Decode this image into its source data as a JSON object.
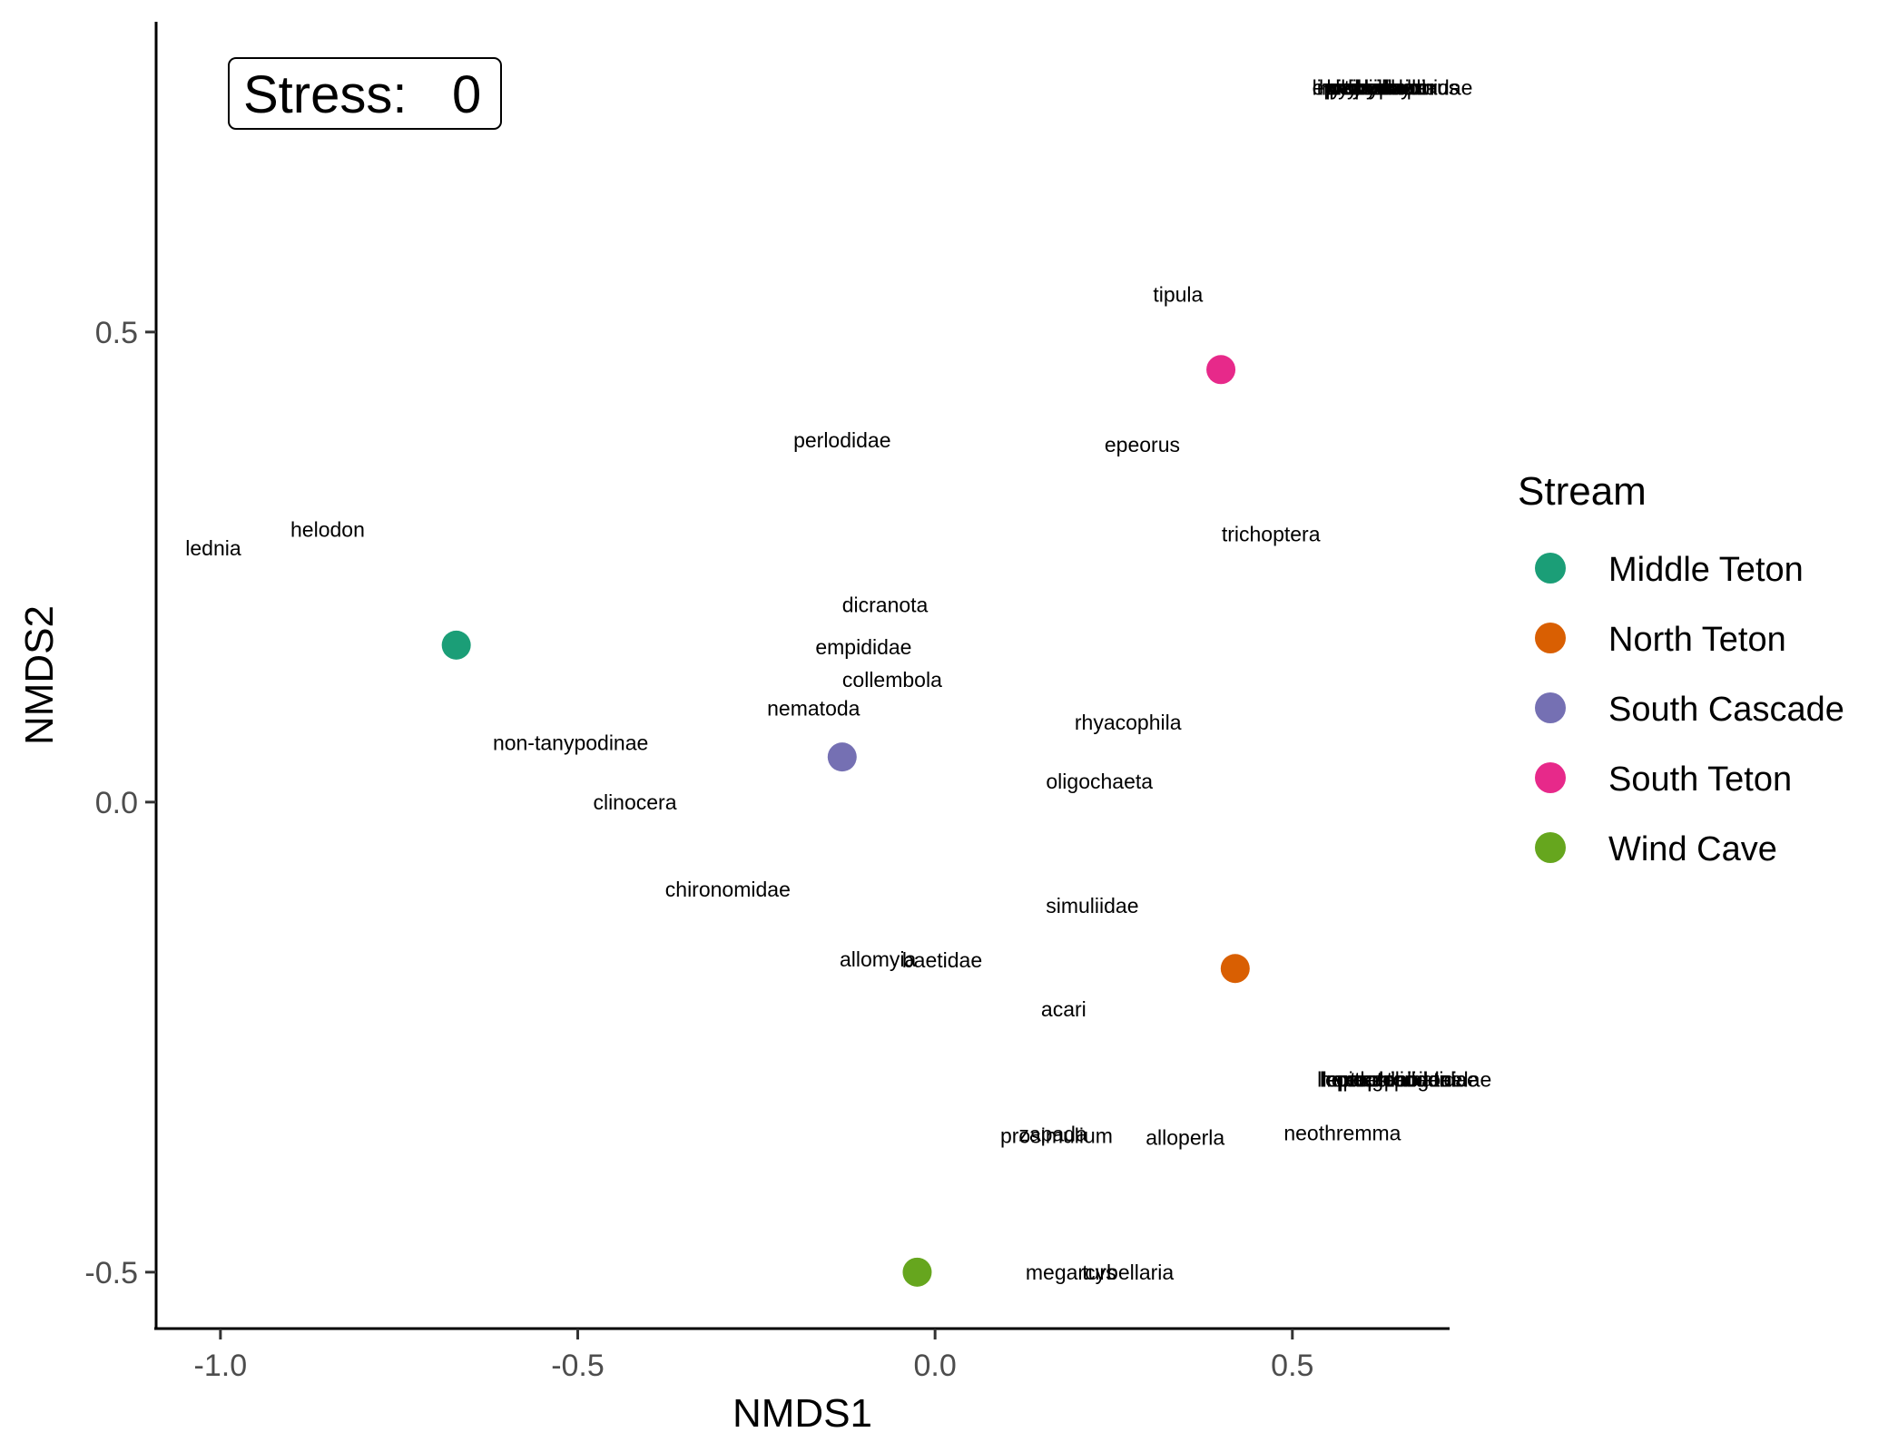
{
  "chart_data": {
    "type": "scatter",
    "xlabel": "NMDS1",
    "ylabel": "NMDS2",
    "xlim": [
      -1.09,
      0.72
    ],
    "ylim": [
      -0.56,
      0.83
    ],
    "xticks": [
      -1.0,
      -0.5,
      0.0,
      0.5
    ],
    "xtick_labels": [
      "-1.0",
      "-0.5",
      "0.0",
      "0.5"
    ],
    "yticks": [
      -0.5,
      0.0,
      0.5
    ],
    "ytick_labels": [
      "-0.5",
      "0.0",
      "0.5"
    ],
    "grid": false,
    "legend": {
      "title": "Stream",
      "position": "right"
    },
    "annotation": {
      "label": "Stress:",
      "value": "0"
    },
    "sites": [
      {
        "name": "Middle Teton",
        "x": -0.67,
        "y": 0.167,
        "color": "#1b9e77"
      },
      {
        "name": "North Teton",
        "x": 0.42,
        "y": -0.177,
        "color": "#d95f02"
      },
      {
        "name": "South Cascade",
        "x": -0.13,
        "y": 0.048,
        "color": "#7570b3"
      },
      {
        "name": "South Teton",
        "x": 0.4,
        "y": 0.46,
        "color": "#e7298a"
      },
      {
        "name": "Wind Cave",
        "x": -0.025,
        "y": -0.5,
        "color": "#66a61e"
      }
    ],
    "species": [
      {
        "label": "tipula",
        "x": 0.34,
        "y": 0.54
      },
      {
        "label": "epeorus",
        "x": 0.29,
        "y": 0.38
      },
      {
        "label": "perlodidae",
        "x": -0.13,
        "y": 0.385
      },
      {
        "label": "trichoptera",
        "x": 0.47,
        "y": 0.285
      },
      {
        "label": "lednia",
        "x": -1.01,
        "y": 0.27
      },
      {
        "label": "helodon",
        "x": -0.85,
        "y": 0.29
      },
      {
        "label": "dicranota",
        "x": -0.07,
        "y": 0.21
      },
      {
        "label": "empididae",
        "x": -0.1,
        "y": 0.165
      },
      {
        "label": "collembola",
        "x": -0.06,
        "y": 0.13
      },
      {
        "label": "nematoda",
        "x": -0.17,
        "y": 0.1
      },
      {
        "label": "rhyacophila",
        "x": 0.27,
        "y": 0.085
      },
      {
        "label": "non-tanypodinae",
        "x": -0.51,
        "y": 0.063
      },
      {
        "label": "oligochaeta",
        "x": 0.23,
        "y": 0.022
      },
      {
        "label": "clinocera",
        "x": -0.42,
        "y": 0.0
      },
      {
        "label": "chironomidae",
        "x": -0.29,
        "y": -0.093
      },
      {
        "label": "simuliidae",
        "x": 0.22,
        "y": -0.11
      },
      {
        "label": "allomyia",
        "x": -0.08,
        "y": -0.167
      },
      {
        "label": "baetidae",
        "x": 0.01,
        "y": -0.168
      },
      {
        "label": "acari",
        "x": 0.18,
        "y": -0.22
      },
      {
        "label": "prosimulium",
        "x": 0.17,
        "y": -0.355
      },
      {
        "label": "zapada",
        "x": 0.165,
        "y": -0.353
      },
      {
        "label": "alloperla",
        "x": 0.35,
        "y": -0.357
      },
      {
        "label": "neothremma",
        "x": 0.57,
        "y": -0.352
      },
      {
        "label": "megarcys",
        "x": 0.19,
        "y": -0.5
      },
      {
        "label": "turbellaria",
        "x": 0.27,
        "y": -0.5
      },
      {
        "label": "limnephilidae",
        "x": 0.62,
        "y": -0.295
      },
      {
        "label": "leptophlebiidae",
        "x": 0.64,
        "y": -0.295
      },
      {
        "label": "heptageniidae",
        "x": 0.63,
        "y": -0.295
      },
      {
        "label": "capniidae",
        "x": 0.66,
        "y": -0.295
      },
      {
        "label": "lepidostomatidae",
        "x": 0.65,
        "y": -0.295
      },
      {
        "label": "ceratopogonidae",
        "x": 0.67,
        "y": -0.295
      },
      {
        "label": "lirceus",
        "x": 0.57,
        "y": 0.76
      },
      {
        "label": "pisidium",
        "x": 0.6,
        "y": 0.76
      },
      {
        "label": "physidae",
        "x": 0.61,
        "y": 0.76
      },
      {
        "label": "hydrachnidia",
        "x": 0.62,
        "y": 0.76
      },
      {
        "label": "tipuliidae",
        "x": 0.63,
        "y": 0.76
      },
      {
        "label": "hyalella",
        "x": 0.64,
        "y": 0.76
      },
      {
        "label": "hydropsychidae",
        "x": 0.65,
        "y": 0.76
      },
      {
        "label": "ephydridae",
        "x": 0.6,
        "y": 0.76
      },
      {
        "label": "hydroporus",
        "x": 0.66,
        "y": 0.76
      }
    ]
  }
}
